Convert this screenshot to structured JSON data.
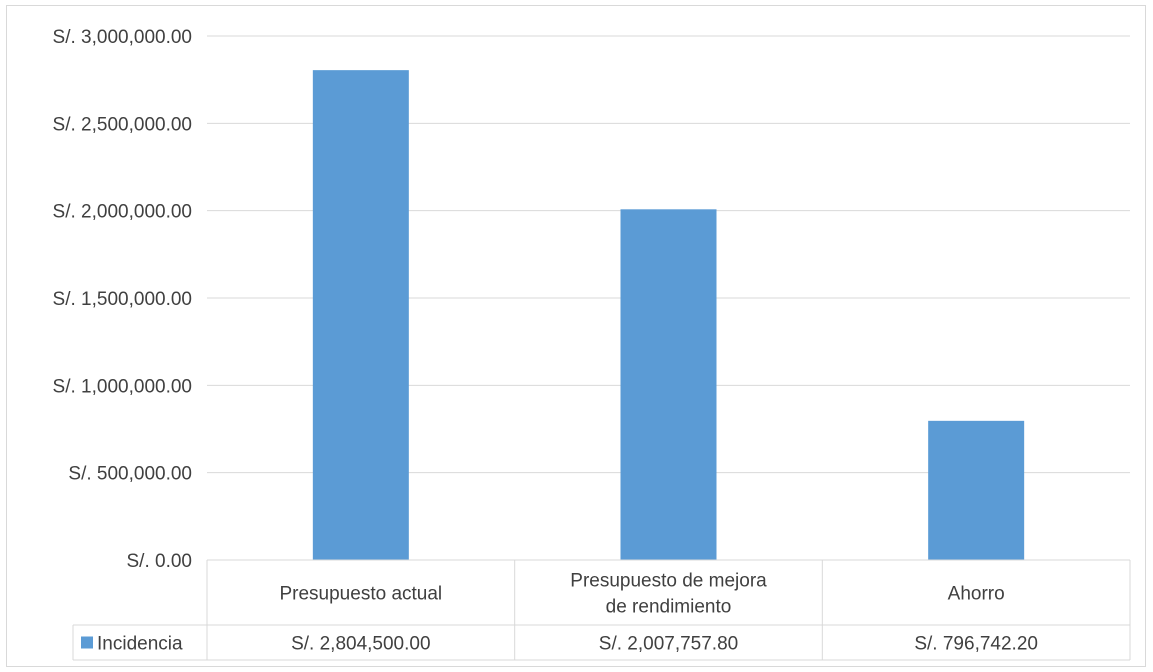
{
  "chart_data": {
    "type": "bar",
    "categories": [
      [
        "Presupuesto actual"
      ],
      [
        "Presupuesto de mejora",
        "de rendimiento"
      ],
      [
        "Ahorro"
      ]
    ],
    "series": [
      {
        "name": "Incidencia",
        "values": [
          2804500.0,
          2007757.8,
          796742.2
        ],
        "value_labels": [
          "S/. 2,804,500.00",
          "S/. 2,007,757.80",
          "S/. 796,742.20"
        ],
        "color": "#5b9bd5"
      }
    ],
    "y_ticks": [
      {
        "value": 0,
        "label": "S/. 0.00"
      },
      {
        "value": 500000,
        "label": "S/. 500,000.00"
      },
      {
        "value": 1000000,
        "label": "S/. 1,000,000.00"
      },
      {
        "value": 1500000,
        "label": "S/. 1,500,000.00"
      },
      {
        "value": 2000000,
        "label": "S/. 2,000,000.00"
      },
      {
        "value": 2500000,
        "label": "S/. 2,500,000.00"
      },
      {
        "value": 3000000,
        "label": "S/. 3,000,000.00"
      }
    ],
    "ylim": [
      0,
      3000000
    ],
    "grid": true,
    "legend": "data-table",
    "gridline_color": "#d9d9d9"
  }
}
